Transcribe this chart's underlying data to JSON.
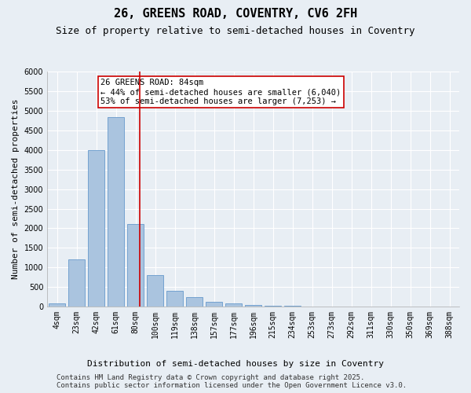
{
  "title": "26, GREENS ROAD, COVENTRY, CV6 2FH",
  "subtitle": "Size of property relative to semi-detached houses in Coventry",
  "xlabel": "Distribution of semi-detached houses by size in Coventry",
  "ylabel": "Number of semi-detached properties",
  "categories": [
    "4sqm",
    "23sqm",
    "42sqm",
    "61sqm",
    "80sqm",
    "100sqm",
    "119sqm",
    "138sqm",
    "157sqm",
    "177sqm",
    "196sqm",
    "215sqm",
    "234sqm",
    "253sqm",
    "273sqm",
    "292sqm",
    "311sqm",
    "330sqm",
    "350sqm",
    "369sqm",
    "388sqm"
  ],
  "values": [
    70,
    1200,
    4000,
    4850,
    2100,
    800,
    390,
    230,
    120,
    70,
    40,
    15,
    8,
    4,
    2,
    1,
    1,
    0,
    0,
    0,
    0
  ],
  "bar_color": "#aac4df",
  "bar_edge_color": "#6699cc",
  "vline_color": "#cc0000",
  "vline_x": 4.2,
  "annotation_text": "26 GREENS ROAD: 84sqm\n← 44% of semi-detached houses are smaller (6,040)\n53% of semi-detached houses are larger (7,253) →",
  "annotation_box_color": "#ffffff",
  "annotation_box_edge": "#cc0000",
  "ylim": [
    0,
    6000
  ],
  "yticks": [
    0,
    500,
    1000,
    1500,
    2000,
    2500,
    3000,
    3500,
    4000,
    4500,
    5000,
    5500,
    6000
  ],
  "bg_color": "#e8eef4",
  "grid_color": "#ffffff",
  "footer": "Contains HM Land Registry data © Crown copyright and database right 2025.\nContains public sector information licensed under the Open Government Licence v3.0.",
  "title_fontsize": 11,
  "subtitle_fontsize": 9,
  "axis_label_fontsize": 8,
  "tick_fontsize": 7,
  "annotation_fontsize": 7.5,
  "footer_fontsize": 6.5
}
